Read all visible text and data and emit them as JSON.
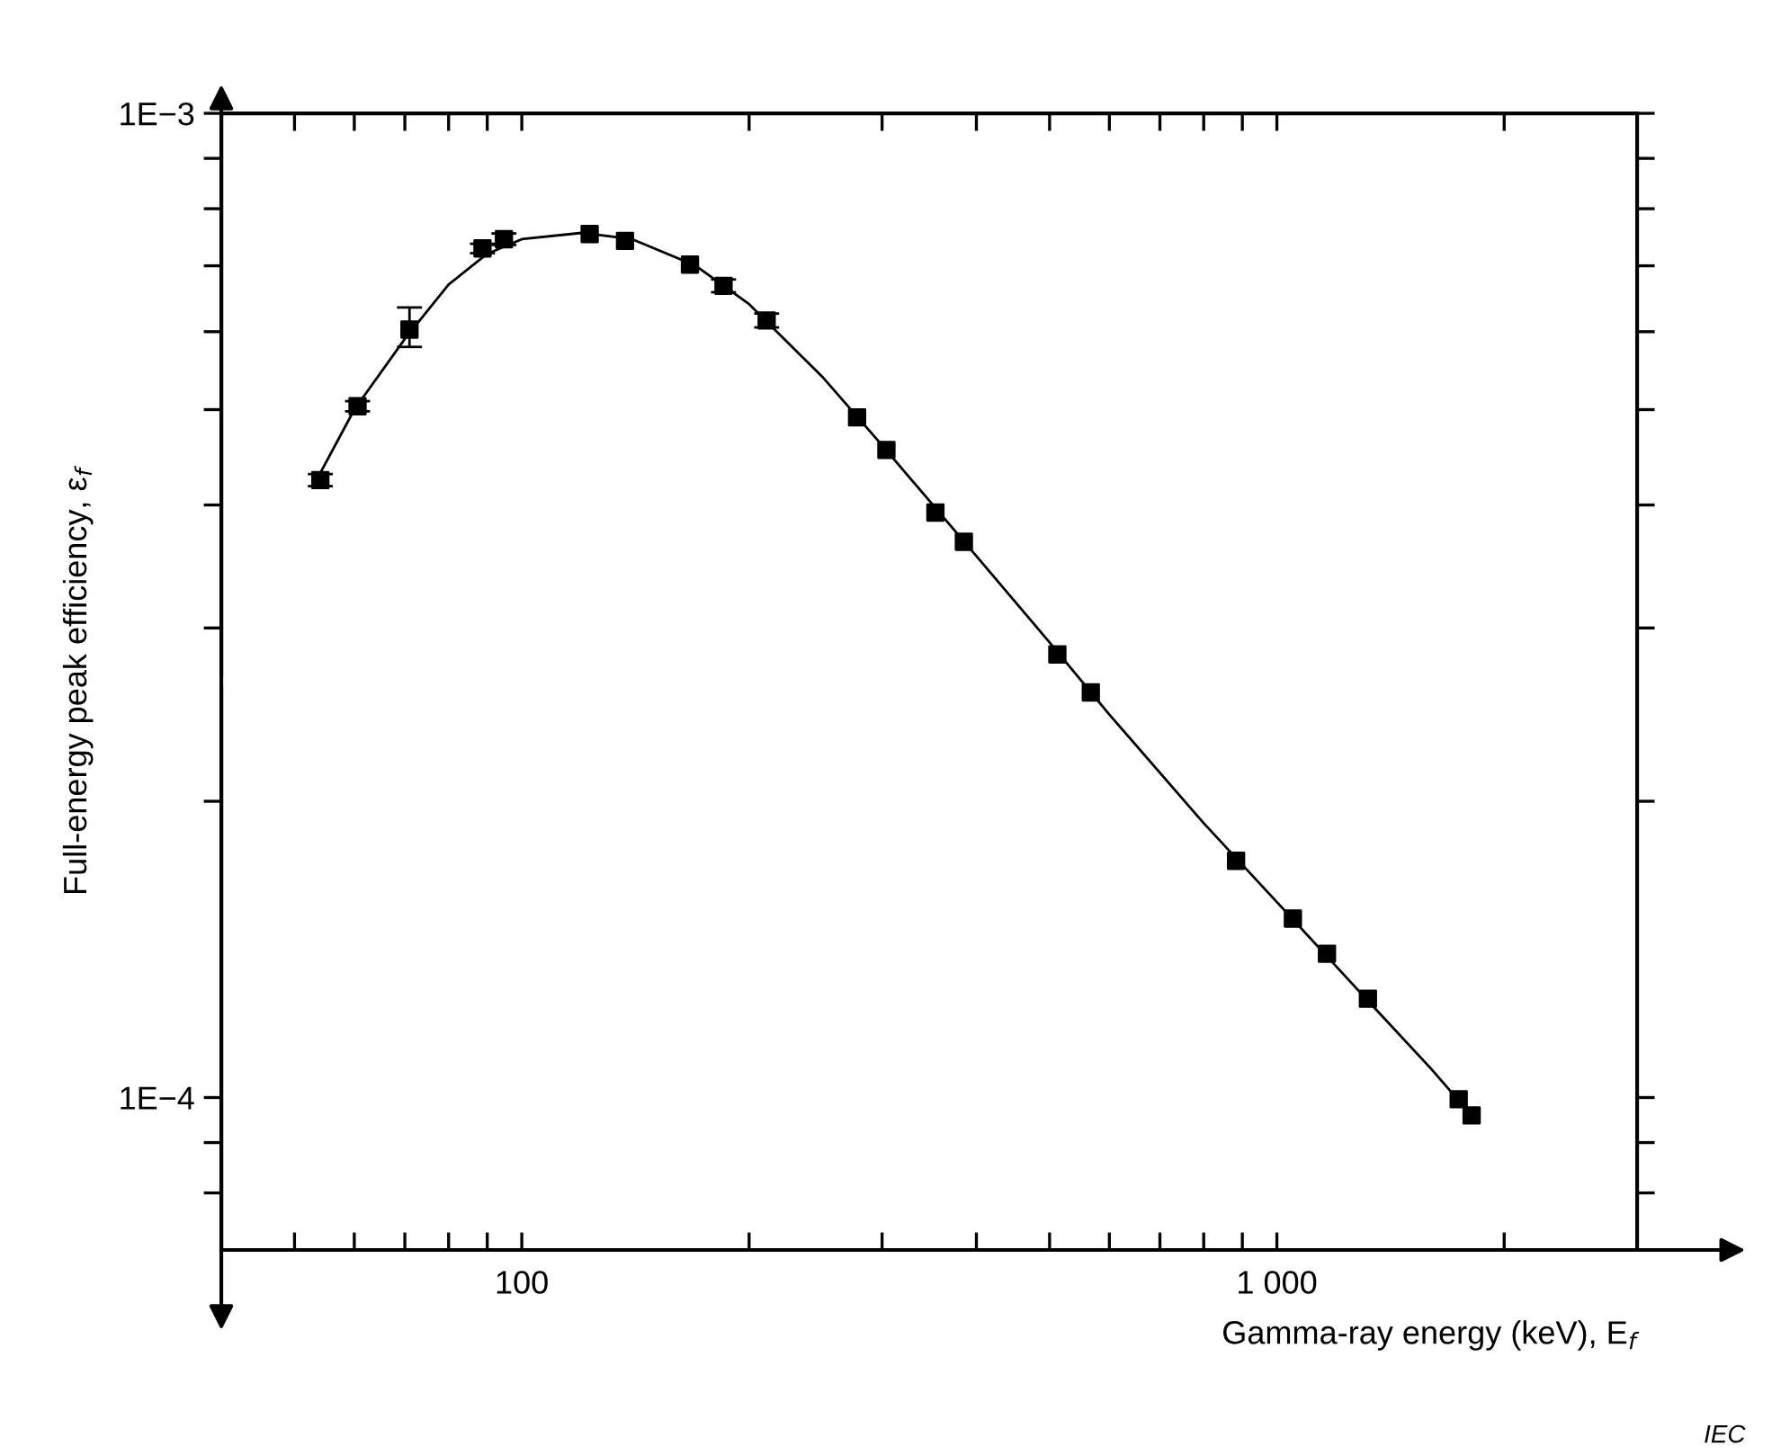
{
  "chart_data": {
    "type": "scatter",
    "xlabel": "Gamma-ray energy (keV), E$_{f}$",
    "ylabel": "Full-energy peak efficiency, ε$_{f}$",
    "annotations": [
      "IEC"
    ],
    "log": "xy",
    "grid": false,
    "xlim": [
      40,
      3000
    ],
    "ylim": [
      7e-05,
      0.001
    ],
    "xticks": [
      {
        "value": 50,
        "label": null
      },
      {
        "value": 60,
        "label": null
      },
      {
        "value": 70,
        "label": null
      },
      {
        "value": 80,
        "label": null
      },
      {
        "value": 90,
        "label": null
      },
      100,
      {
        "value": 200,
        "label": null
      },
      {
        "value": 300,
        "label": null
      },
      {
        "value": 400,
        "label": null
      },
      {
        "value": 500,
        "label": null
      },
      {
        "value": 600,
        "label": null
      },
      {
        "value": 700,
        "label": null
      },
      {
        "value": 800,
        "label": null
      },
      {
        "value": 900,
        "label": null
      },
      {
        "value": 1000,
        "label": "1 000"
      },
      {
        "value": 2000,
        "label": null
      }
    ],
    "yticks": [
      {
        "value": 8e-05,
        "label": null
      },
      {
        "value": 9e-05,
        "label": null
      },
      {
        "value": 0.0001,
        "label": "1E−4"
      },
      {
        "value": 0.0002,
        "label": null
      },
      {
        "value": 0.0003,
        "label": null
      },
      {
        "value": 0.0004,
        "label": null
      },
      {
        "value": 0.0005,
        "label": null
      },
      {
        "value": 0.0006,
        "label": null
      },
      {
        "value": 0.0007,
        "label": null
      },
      {
        "value": 0.0008,
        "label": null
      },
      {
        "value": 0.0009,
        "label": null
      },
      {
        "value": 0.001,
        "label": "1E−3"
      }
    ],
    "series": [
      {
        "color": "#000000",
        "marker": "square",
        "x": [
          54.1,
          60.6,
          71.0,
          88.7,
          94.7,
          123,
          137,
          167,
          185,
          211,
          278,
          304,
          353,
          385,
          512,
          567,
          883,
          1050,
          1165,
          1320,
          1741,
          1811
        ],
        "values": [
          0.000424,
          0.000504,
          0.000603,
          0.000729,
          0.000745,
          0.000754,
          0.000742,
          0.000702,
          0.000668,
          0.000616,
          0.000491,
          0.000455,
          0.000393,
          0.000367,
          0.000282,
          0.000258,
          0.000174,
          0.000152,
          0.00014,
          0.000126,
          9.96e-05,
          9.59e-05
        ],
        "errors": [
          6e-06,
          6e-06,
          [
            0.000579,
            0.000635
          ],
          8e-06,
          1e-05,
          null,
          null,
          null,
          1e-05,
          1e-05,
          null,
          null,
          null,
          null,
          null,
          null,
          null,
          null,
          null,
          null,
          null,
          null
        ]
      },
      {
        "type": "line",
        "color": "#000000",
        "marker": "none",
        "line_style": "solid",
        "x": [
          54,
          60,
          70,
          80,
          90,
          100,
          120,
          140,
          170,
          200,
          250,
          300,
          400,
          500,
          600,
          800,
          1000,
          1300,
          1600,
          1830
        ],
        "values": [
          0.00043,
          0.0005,
          0.00059,
          0.00067,
          0.00072,
          0.000745,
          0.000756,
          0.000745,
          0.0007,
          0.00064,
          0.00054,
          0.00046,
          0.000355,
          0.00029,
          0.000245,
          0.00019,
          0.000158,
          0.000127,
          0.000107,
          9.5e-05
        ]
      }
    ]
  }
}
